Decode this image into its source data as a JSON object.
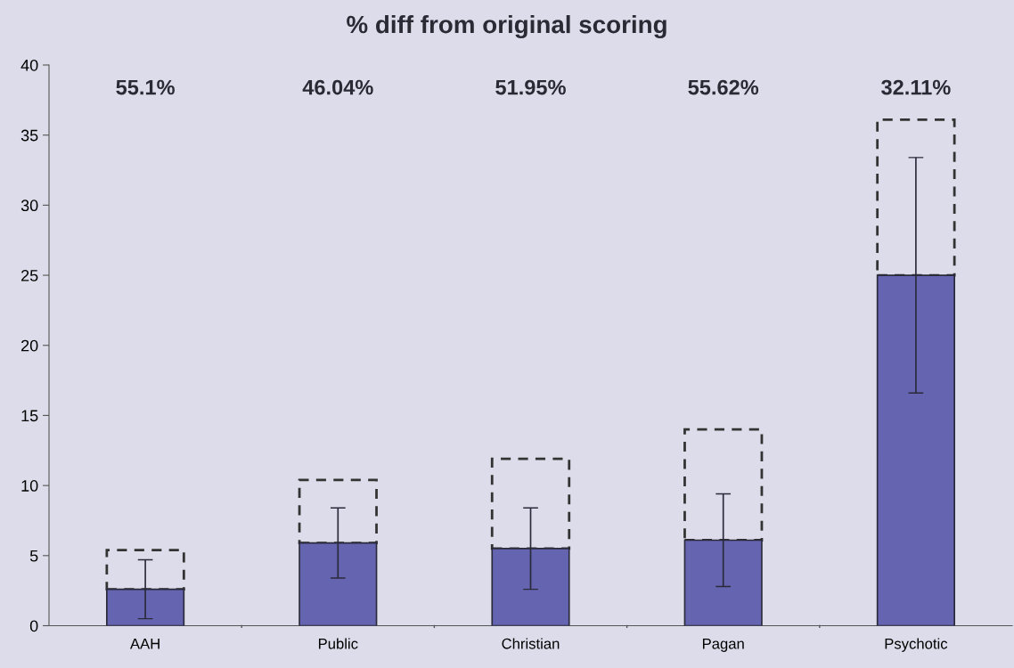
{
  "chart_data": {
    "type": "bar",
    "title": "% diff from original scoring",
    "categories": [
      "AAH",
      "Public",
      "Christian",
      "Pagan",
      "Psychotic"
    ],
    "stacked": true,
    "series": [
      {
        "color": "#6464b0",
        "values": [
          2.6,
          5.9,
          5.5,
          6.1,
          25.0
        ],
        "errors": [
          2.1,
          2.5,
          2.9,
          3.3,
          8.4
        ]
      },
      {
        "color": "#333333",
        "line_style": "dashed",
        "values": [
          2.8,
          4.5,
          6.4,
          7.9,
          11.1
        ]
      }
    ],
    "ylim": [
      0,
      40
    ],
    "yticks": [
      0,
      5,
      10,
      15,
      20,
      25,
      30,
      35,
      40
    ],
    "grid": false,
    "legend": false,
    "annotations": [
      "55.1%",
      "46.04%",
      "51.95%",
      "55.62%",
      "32.11%"
    ]
  }
}
